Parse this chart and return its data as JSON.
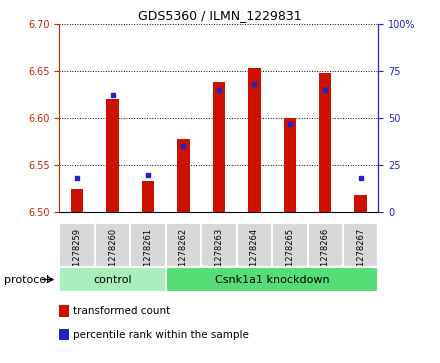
{
  "title": "GDS5360 / ILMN_1229831",
  "samples": [
    "GSM1278259",
    "GSM1278260",
    "GSM1278261",
    "GSM1278262",
    "GSM1278263",
    "GSM1278264",
    "GSM1278265",
    "GSM1278266",
    "GSM1278267"
  ],
  "transformed_counts": [
    6.525,
    6.62,
    6.533,
    6.578,
    6.638,
    6.653,
    6.6,
    6.648,
    6.518
  ],
  "percentile_ranks": [
    18,
    62,
    20,
    35,
    65,
    68,
    47,
    65,
    18
  ],
  "ylim_left": [
    6.5,
    6.7
  ],
  "ylim_right": [
    0,
    100
  ],
  "yticks_left": [
    6.5,
    6.55,
    6.6,
    6.65,
    6.7
  ],
  "yticks_right": [
    0,
    25,
    50,
    75,
    100
  ],
  "bar_color": "#cc1100",
  "dot_color": "#2222cc",
  "bar_width": 0.35,
  "groups": [
    {
      "label": "control",
      "start": 0,
      "end": 2,
      "color": "#aaeebb"
    },
    {
      "label": "Csnk1a1 knockdown",
      "start": 3,
      "end": 8,
      "color": "#55dd77"
    }
  ],
  "protocol_label": "protocol",
  "legend_items": [
    {
      "label": "transformed count",
      "color": "#cc1100"
    },
    {
      "label": "percentile rank within the sample",
      "color": "#2222cc"
    }
  ],
  "tick_color_left": "#cc2200",
  "tick_color_right": "#2222cc",
  "xticklabel_bg": "#d8d8d8",
  "plot_bg": "#ffffff"
}
